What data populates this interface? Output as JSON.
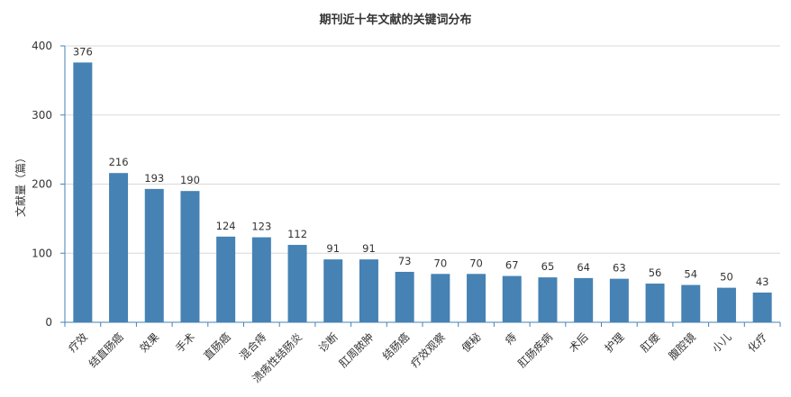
{
  "chart_data": {
    "type": "bar",
    "title": "期刊近十年文献的关键词分布",
    "xlabel": "",
    "ylabel": "文献量（篇）",
    "ylim": [
      0,
      400
    ],
    "yticks": [
      0,
      100,
      200,
      300,
      400
    ],
    "grid": true,
    "legend": "none",
    "bar_color": "#4682b4",
    "categories": [
      "疗效",
      "结直肠癌",
      "效果",
      "手术",
      "直肠癌",
      "混合痔",
      "溃疡性结肠炎",
      "诊断",
      "肛周脓肿",
      "结肠癌",
      "疗效观察",
      "便秘",
      "痔",
      "肛肠疾病",
      "术后",
      "护理",
      "肛瘘",
      "腹腔镜",
      "小儿",
      "化疗"
    ],
    "values": [
      376,
      216,
      193,
      190,
      124,
      123,
      112,
      91,
      91,
      73,
      70,
      70,
      67,
      65,
      64,
      63,
      56,
      54,
      50,
      43
    ]
  }
}
